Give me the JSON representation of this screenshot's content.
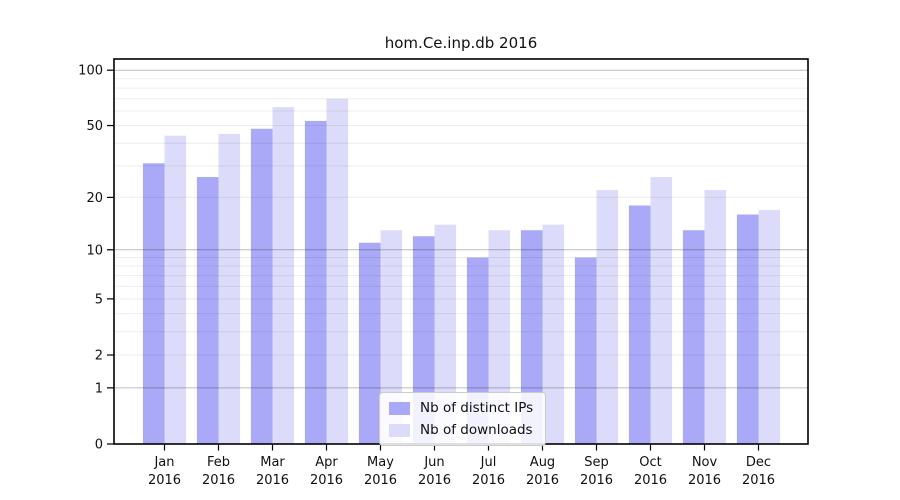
{
  "figure": {
    "background": "#ffffff"
  },
  "chart_data": {
    "type": "bar",
    "title": "hom.Ce.inp.db 2016",
    "categories": [
      "Jan",
      "Feb",
      "Mar",
      "Apr",
      "May",
      "Jun",
      "Jul",
      "Aug",
      "Sep",
      "Oct",
      "Nov",
      "Dec"
    ],
    "category_year": "2016",
    "series": [
      {
        "name": "Nb of distinct IPs",
        "color": "#a9a9f7",
        "values": [
          31,
          26,
          48,
          53,
          11,
          12,
          9,
          13,
          9,
          18,
          13,
          16
        ]
      },
      {
        "name": "Nb of downloads",
        "color": "#dcdcfa",
        "values": [
          44,
          45,
          63,
          70,
          13,
          14,
          13,
          14,
          22,
          26,
          22,
          17
        ]
      }
    ],
    "yscale": "log1p",
    "ylim": [
      0,
      100
    ],
    "yticks": [
      0,
      1,
      2,
      5,
      10,
      20,
      50,
      100
    ],
    "minor_gridlines": [
      2,
      3,
      4,
      5,
      6,
      7,
      8,
      9,
      20,
      30,
      40,
      50,
      60,
      70,
      80,
      90
    ],
    "major_gridlines": [
      1,
      10,
      100
    ],
    "grid": true,
    "legend_position": "lower center",
    "xlabel": "",
    "ylabel": ""
  }
}
